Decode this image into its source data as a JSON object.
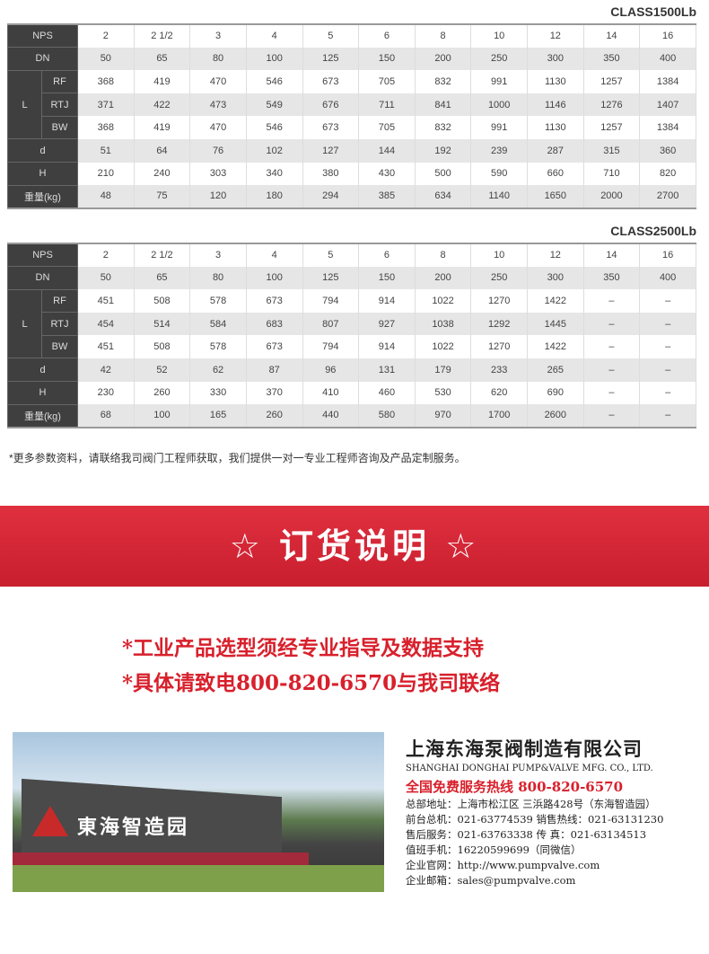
{
  "tables": [
    {
      "title": "CLASS1500Lb",
      "nps": [
        "2",
        "2 1/2",
        "3",
        "4",
        "5",
        "6",
        "8",
        "10",
        "12",
        "14",
        "16"
      ],
      "dn": [
        "50",
        "65",
        "80",
        "100",
        "125",
        "150",
        "200",
        "250",
        "300",
        "350",
        "400"
      ],
      "rf": [
        "368",
        "419",
        "470",
        "546",
        "673",
        "705",
        "832",
        "991",
        "1130",
        "1257",
        "1384"
      ],
      "rtj": [
        "371",
        "422",
        "473",
        "549",
        "676",
        "711",
        "841",
        "1000",
        "1146",
        "1276",
        "1407"
      ],
      "bw": [
        "368",
        "419",
        "470",
        "546",
        "673",
        "705",
        "832",
        "991",
        "1130",
        "1257",
        "1384"
      ],
      "d": [
        "51",
        "64",
        "76",
        "102",
        "127",
        "144",
        "192",
        "239",
        "287",
        "315",
        "360"
      ],
      "h": [
        "210",
        "240",
        "303",
        "340",
        "380",
        "430",
        "500",
        "590",
        "660",
        "710",
        "820"
      ],
      "w": [
        "48",
        "75",
        "120",
        "180",
        "294",
        "385",
        "634",
        "1140",
        "1650",
        "2000",
        "2700"
      ]
    },
    {
      "title": "CLASS2500Lb",
      "nps": [
        "2",
        "2 1/2",
        "3",
        "4",
        "5",
        "6",
        "8",
        "10",
        "12",
        "14",
        "16"
      ],
      "dn": [
        "50",
        "65",
        "80",
        "100",
        "125",
        "150",
        "200",
        "250",
        "300",
        "350",
        "400"
      ],
      "rf": [
        "451",
        "508",
        "578",
        "673",
        "794",
        "914",
        "1022",
        "1270",
        "1422",
        "–",
        "–"
      ],
      "rtj": [
        "454",
        "514",
        "584",
        "683",
        "807",
        "927",
        "1038",
        "1292",
        "1445",
        "–",
        "–"
      ],
      "bw": [
        "451",
        "508",
        "578",
        "673",
        "794",
        "914",
        "1022",
        "1270",
        "1422",
        "–",
        "–"
      ],
      "d": [
        "42",
        "52",
        "62",
        "87",
        "96",
        "131",
        "179",
        "233",
        "265",
        "–",
        "–"
      ],
      "h": [
        "230",
        "260",
        "330",
        "370",
        "410",
        "460",
        "530",
        "620",
        "690",
        "–",
        "–"
      ],
      "w": [
        "68",
        "100",
        "165",
        "260",
        "440",
        "580",
        "970",
        "1700",
        "2600",
        "–",
        "–"
      ]
    }
  ],
  "row_labels": {
    "nps": "NPS",
    "dn": "DN",
    "l": "L",
    "rf": "RF",
    "rtj": "RTJ",
    "bw": "BW",
    "d": "d",
    "h": "H",
    "w": "重量(kg)"
  },
  "note": "*更多参数资料，请联络我司阀门工程师获取，我们提供一对一专业工程师咨询及产品定制服务。",
  "banner": "☆ 订货说明 ☆",
  "red_lines": [
    "*工业产品选型须经专业指导及数据支持",
    "*具体请致电800-820-6570与我司联络"
  ],
  "photo_sign": "東海智造园",
  "company": {
    "name_cn": "上海东海泵阀制造有限公司",
    "name_en": "SHANGHAI DONGHAI PUMP&VALVE MFG. CO., LTD.",
    "hotline": "全国免费服务热线  800-820-6570",
    "lines": [
      "总部地址：上海市松江区 三浜路428号（东海智造园）",
      "前台总机：021-63774539   销售热线：021-63131230",
      "售后服务：021-63763338   传      真：021-63134513",
      "值班手机：16220599699（同微信）",
      "企业官网：http://www.pumpvalve.com",
      "企业邮箱：sales@pumpvalve.com"
    ]
  },
  "colors": {
    "accent": "#d8202c",
    "header": "#3f3f3f"
  }
}
